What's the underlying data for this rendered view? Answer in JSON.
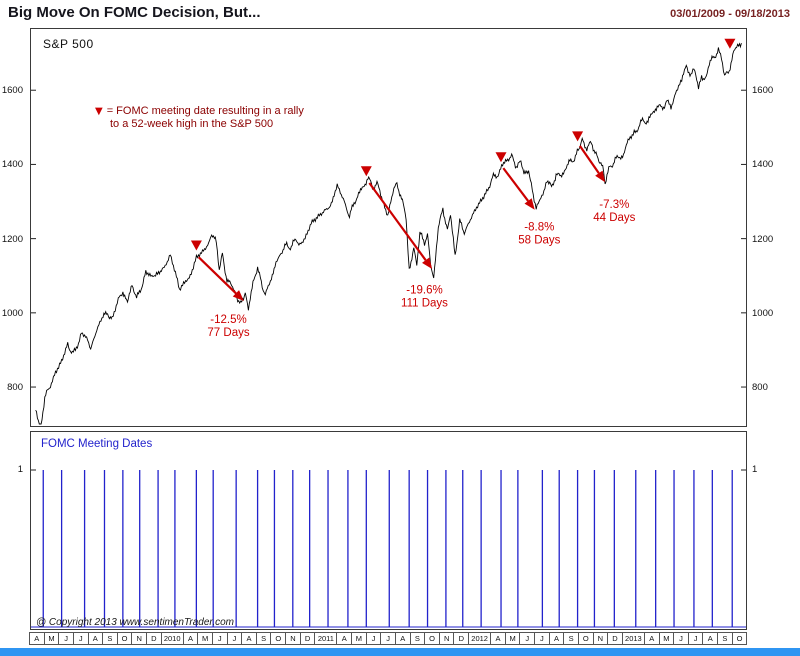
{
  "header": {
    "title": "Big Move On FOMC Decision, But...",
    "date_range": "03/01/2009 - 09/18/2013"
  },
  "main_panel": {
    "series_label": "S&P 500",
    "legend": {
      "symbol": "▼",
      "line1": "= FOMC  meeting date resulting in a rally",
      "line2": "to a 52-week high in the S&P 500"
    }
  },
  "lower_panel": {
    "title": "FOMC Meeting Dates",
    "ytick_label": "1"
  },
  "footer": {
    "copyright": "@ Copyright 2013  www.sentimenTrader.com"
  },
  "colors": {
    "price_line": "#000000",
    "marker_red": "#cc0000",
    "legend_dark_red": "#8b0000",
    "fomc_blue": "#2222cc",
    "bottom_strip_blue": "#2f95f2"
  },
  "xaxis_labels": [
    "A",
    "M",
    "J",
    "J",
    "A",
    "S",
    "O",
    "N",
    "D",
    "2010",
    "A",
    "M",
    "J",
    "J",
    "A",
    "S",
    "O",
    "N",
    "D",
    "2011",
    "A",
    "M",
    "J",
    "J",
    "A",
    "S",
    "O",
    "N",
    "D",
    "2012",
    "A",
    "M",
    "J",
    "J",
    "A",
    "S",
    "O",
    "N",
    "D",
    "2013",
    "A",
    "M",
    "J",
    "J",
    "A",
    "S",
    "O"
  ],
  "chart_data": [
    {
      "type": "line",
      "name": "sp500_price",
      "title": "S&P 500",
      "x_range": [
        2009.13,
        2013.8
      ],
      "y_range": [
        695,
        1765
      ],
      "yticks": [
        800,
        1000,
        1200,
        1400,
        1600
      ],
      "grid": false,
      "line_color": "#000000",
      "accent_color": "#cc0000",
      "points": [
        [
          2009.16,
          737
        ],
        [
          2009.19,
          683
        ],
        [
          2009.22,
          770
        ],
        [
          2009.25,
          798
        ],
        [
          2009.29,
          842
        ],
        [
          2009.33,
          873
        ],
        [
          2009.37,
          920
        ],
        [
          2009.4,
          888
        ],
        [
          2009.44,
          910
        ],
        [
          2009.46,
          944
        ],
        [
          2009.5,
          923
        ],
        [
          2009.52,
          898
        ],
        [
          2009.56,
          950
        ],
        [
          2009.6,
          987
        ],
        [
          2009.63,
          1002
        ],
        [
          2009.66,
          979
        ],
        [
          2009.7,
          1030
        ],
        [
          2009.73,
          1060
        ],
        [
          2009.76,
          1025
        ],
        [
          2009.79,
          1080
        ],
        [
          2009.82,
          1036
        ],
        [
          2009.85,
          1070
        ],
        [
          2009.88,
          1105
        ],
        [
          2009.92,
          1091
        ],
        [
          2009.95,
          1110
        ],
        [
          2010.0,
          1115
        ],
        [
          2010.04,
          1150
        ],
        [
          2010.08,
          1092
        ],
        [
          2010.1,
          1057
        ],
        [
          2010.14,
          1080
        ],
        [
          2010.17,
          1104
        ],
        [
          2010.21,
          1155
        ],
        [
          2010.25,
          1170
        ],
        [
          2010.29,
          1191
        ],
        [
          2010.31,
          1217
        ],
        [
          2010.34,
          1186
        ],
        [
          2010.36,
          1110
        ],
        [
          2010.38,
          1156
        ],
        [
          2010.41,
          1090
        ],
        [
          2010.44,
          1072
        ],
        [
          2010.48,
          1030
        ],
        [
          2010.5,
          1022
        ],
        [
          2010.53,
          1060
        ],
        [
          2010.55,
          1010
        ],
        [
          2010.58,
          1078
        ],
        [
          2010.61,
          1127
        ],
        [
          2010.64,
          1064
        ],
        [
          2010.66,
          1047
        ],
        [
          2010.7,
          1090
        ],
        [
          2010.73,
          1141
        ],
        [
          2010.77,
          1165
        ],
        [
          2010.8,
          1183
        ],
        [
          2010.83,
          1178
        ],
        [
          2010.86,
          1197
        ],
        [
          2010.88,
          1180
        ],
        [
          2010.92,
          1199
        ],
        [
          2010.96,
          1241
        ],
        [
          2011.0,
          1257
        ],
        [
          2011.04,
          1272
        ],
        [
          2011.08,
          1286
        ],
        [
          2011.11,
          1319
        ],
        [
          2011.13,
          1343
        ],
        [
          2011.17,
          1306
        ],
        [
          2011.21,
          1256
        ],
        [
          2011.24,
          1298
        ],
        [
          2011.27,
          1319
        ],
        [
          2011.3,
          1340
        ],
        [
          2011.33,
          1363
        ],
        [
          2011.36,
          1340
        ],
        [
          2011.39,
          1348
        ],
        [
          2011.42,
          1312
        ],
        [
          2011.46,
          1265
        ],
        [
          2011.5,
          1340
        ],
        [
          2011.52,
          1353
        ],
        [
          2011.55,
          1305
        ],
        [
          2011.58,
          1260
        ],
        [
          2011.6,
          1119
        ],
        [
          2011.63,
          1172
        ],
        [
          2011.65,
          1123
        ],
        [
          2011.67,
          1213
        ],
        [
          2011.7,
          1190
        ],
        [
          2011.72,
          1216
        ],
        [
          2011.74,
          1136
        ],
        [
          2011.76,
          1099
        ],
        [
          2011.79,
          1224
        ],
        [
          2011.82,
          1285
        ],
        [
          2011.85,
          1218
        ],
        [
          2011.87,
          1260
        ],
        [
          2011.9,
          1158
        ],
        [
          2011.93,
          1244
        ],
        [
          2011.96,
          1220
        ],
        [
          2012.0,
          1258
        ],
        [
          2012.04,
          1290
        ],
        [
          2012.08,
          1315
        ],
        [
          2012.12,
          1342
        ],
        [
          2012.15,
          1365
        ],
        [
          2012.18,
          1374
        ],
        [
          2012.21,
          1396
        ],
        [
          2012.25,
          1408
        ],
        [
          2012.27,
          1419
        ],
        [
          2012.3,
          1398
        ],
        [
          2012.33,
          1403
        ],
        [
          2012.35,
          1370
        ],
        [
          2012.38,
          1390
        ],
        [
          2012.41,
          1310
        ],
        [
          2012.43,
          1278
        ],
        [
          2012.46,
          1318
        ],
        [
          2012.48,
          1330
        ],
        [
          2012.5,
          1362
        ],
        [
          2012.53,
          1334
        ],
        [
          2012.56,
          1376
        ],
        [
          2012.59,
          1365
        ],
        [
          2012.62,
          1390
        ],
        [
          2012.65,
          1406
        ],
        [
          2012.68,
          1418
        ],
        [
          2012.71,
          1438
        ],
        [
          2012.73,
          1466
        ],
        [
          2012.76,
          1445
        ],
        [
          2012.79,
          1455
        ],
        [
          2012.82,
          1433
        ],
        [
          2012.84,
          1412
        ],
        [
          2012.87,
          1380
        ],
        [
          2012.88,
          1350
        ],
        [
          2012.91,
          1392
        ],
        [
          2012.94,
          1410
        ],
        [
          2012.97,
          1419
        ],
        [
          2013.0,
          1426
        ],
        [
          2013.03,
          1462
        ],
        [
          2013.07,
          1486
        ],
        [
          2013.1,
          1502
        ],
        [
          2013.13,
          1520
        ],
        [
          2013.16,
          1515
        ],
        [
          2013.19,
          1540
        ],
        [
          2013.22,
          1556
        ],
        [
          2013.25,
          1552
        ],
        [
          2013.28,
          1569
        ],
        [
          2013.31,
          1555
        ],
        [
          2013.34,
          1593
        ],
        [
          2013.38,
          1625
        ],
        [
          2013.41,
          1667
        ],
        [
          2013.44,
          1640
        ],
        [
          2013.46,
          1655
        ],
        [
          2013.49,
          1608
        ],
        [
          2013.51,
          1640
        ],
        [
          2013.54,
          1631
        ],
        [
          2013.56,
          1669
        ],
        [
          2013.59,
          1692
        ],
        [
          2013.62,
          1706
        ],
        [
          2013.64,
          1685
        ],
        [
          2013.66,
          1633
        ],
        [
          2013.69,
          1655
        ],
        [
          2013.72,
          1703
        ],
        [
          2013.77,
          1727
        ]
      ],
      "markers": {
        "symbol": "triangle-down",
        "color": "#cc0000",
        "positions": [
          [
            2010.21,
            1168
          ],
          [
            2011.32,
            1368
          ],
          [
            2012.2,
            1406
          ],
          [
            2012.7,
            1462
          ],
          [
            2013.695,
            1712
          ]
        ]
      },
      "arrows": [
        {
          "from": [
            2010.225,
            1150
          ],
          "to": [
            2010.52,
            1032
          ]
        },
        {
          "from": [
            2011.34,
            1350
          ],
          "to": [
            2011.75,
            1118
          ]
        },
        {
          "from": [
            2012.215,
            1390
          ],
          "to": [
            2012.42,
            1278
          ]
        },
        {
          "from": [
            2012.715,
            1450
          ],
          "to": [
            2012.88,
            1352
          ]
        }
      ],
      "annotations": [
        {
          "x": 2010.42,
          "y": 972,
          "lines": [
            "-12.5%",
            "77 Days"
          ]
        },
        {
          "x": 2011.7,
          "y": 1052,
          "lines": [
            "-19.6%",
            "111 Days"
          ]
        },
        {
          "x": 2012.45,
          "y": 1222,
          "lines": [
            "-8.8%",
            "58 Days"
          ]
        },
        {
          "x": 2012.94,
          "y": 1282,
          "lines": [
            "-7.3%",
            "44 Days"
          ]
        }
      ]
    },
    {
      "type": "spike",
      "name": "fomc_meeting_dates",
      "title": "FOMC Meeting Dates",
      "x_range": [
        2009.13,
        2013.8
      ],
      "y_range": [
        0,
        1.25
      ],
      "yticks": [
        1
      ],
      "spike_value": 1,
      "color": "#2222cc",
      "dates": [
        2009.21,
        2009.33,
        2009.48,
        2009.61,
        2009.73,
        2009.84,
        2009.96,
        2010.07,
        2010.21,
        2010.32,
        2010.47,
        2010.61,
        2010.72,
        2010.84,
        2010.95,
        2011.07,
        2011.2,
        2011.32,
        2011.47,
        2011.6,
        2011.72,
        2011.84,
        2011.95,
        2012.07,
        2012.2,
        2012.31,
        2012.47,
        2012.58,
        2012.7,
        2012.81,
        2012.94,
        2013.08,
        2013.21,
        2013.33,
        2013.46,
        2013.58,
        2013.71
      ]
    }
  ]
}
